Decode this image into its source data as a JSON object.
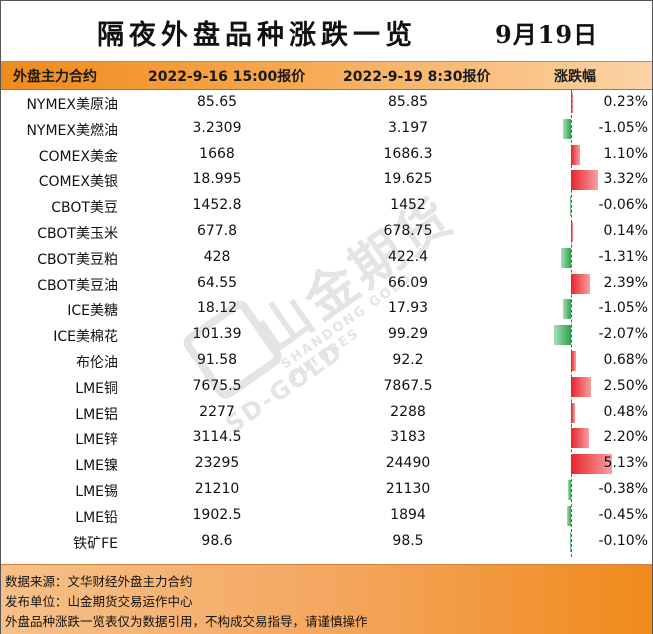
{
  "title": "隔夜外盘品种涨跌一览",
  "date": "9月19日",
  "header": {
    "col_name": "外盘主力合约",
    "col_prev": "2022-9-16 15:00报价",
    "col_curr": "2022-9-19 8:30报价",
    "col_change": "涨跌幅"
  },
  "colors": {
    "up": "#e8242b",
    "down": "#2ea34d",
    "header": "#f08a1c"
  },
  "rows": [
    {
      "name": "NYMEX美原油",
      "prev": "85.65",
      "curr": "85.85",
      "pct": "0.23%",
      "change": 0.23
    },
    {
      "name": "NYMEX美燃油",
      "prev": "3.2309",
      "curr": "3.197",
      "pct": "-1.05%",
      "change": -1.05
    },
    {
      "name": "COMEX美金",
      "prev": "1668",
      "curr": "1686.3",
      "pct": "1.10%",
      "change": 1.1
    },
    {
      "name": "COMEX美银",
      "prev": "18.995",
      "curr": "19.625",
      "pct": "3.32%",
      "change": 3.32
    },
    {
      "name": "CBOT美豆",
      "prev": "1452.8",
      "curr": "1452",
      "pct": "-0.06%",
      "change": -0.06
    },
    {
      "name": "CBOT美玉米",
      "prev": "677.8",
      "curr": "678.75",
      "pct": "0.14%",
      "change": 0.14
    },
    {
      "name": "CBOT美豆粕",
      "prev": "428",
      "curr": "422.4",
      "pct": "-1.31%",
      "change": -1.31
    },
    {
      "name": "CBOT美豆油",
      "prev": "64.55",
      "curr": "66.09",
      "pct": "2.39%",
      "change": 2.39
    },
    {
      "name": "ICE美糖",
      "prev": "18.12",
      "curr": "17.93",
      "pct": "-1.05%",
      "change": -1.05
    },
    {
      "name": "ICE美棉花",
      "prev": "101.39",
      "curr": "99.29",
      "pct": "-2.07%",
      "change": -2.07
    },
    {
      "name": "布伦油",
      "prev": "91.58",
      "curr": "92.2",
      "pct": "0.68%",
      "change": 0.68
    },
    {
      "name": "LME铜",
      "prev": "7675.5",
      "curr": "7867.5",
      "pct": "2.50%",
      "change": 2.5
    },
    {
      "name": "LME铝",
      "prev": "2277",
      "curr": "2288",
      "pct": "0.48%",
      "change": 0.48
    },
    {
      "name": "LME锌",
      "prev": "3114.5",
      "curr": "3183",
      "pct": "2.20%",
      "change": 2.2
    },
    {
      "name": "LME镍",
      "prev": "23295",
      "curr": "24490",
      "pct": "5.13%",
      "change": 5.13
    },
    {
      "name": "LME锡",
      "prev": "21210",
      "curr": "21130",
      "pct": "-0.38%",
      "change": -0.38
    },
    {
      "name": "LME铅",
      "prev": "1902.5",
      "curr": "1894",
      "pct": "-0.45%",
      "change": -0.45
    },
    {
      "name": "铁矿FE",
      "prev": "98.6",
      "curr": "98.5",
      "pct": "-0.10%",
      "change": -0.1
    }
  ],
  "footer": {
    "source": "数据来源：文华财经外盘主力合约",
    "publisher": "发布单位：山金期货交易运作中心",
    "disclaimer": "外盘品种涨跌一览表仅为数据引用，不构成交易指导，请谨慎操作"
  },
  "watermark": {
    "brand_cn": "山金期货",
    "brand_en": "SHANDONG GOLD FUTURES",
    "logo_text": "SD-GOLD"
  }
}
